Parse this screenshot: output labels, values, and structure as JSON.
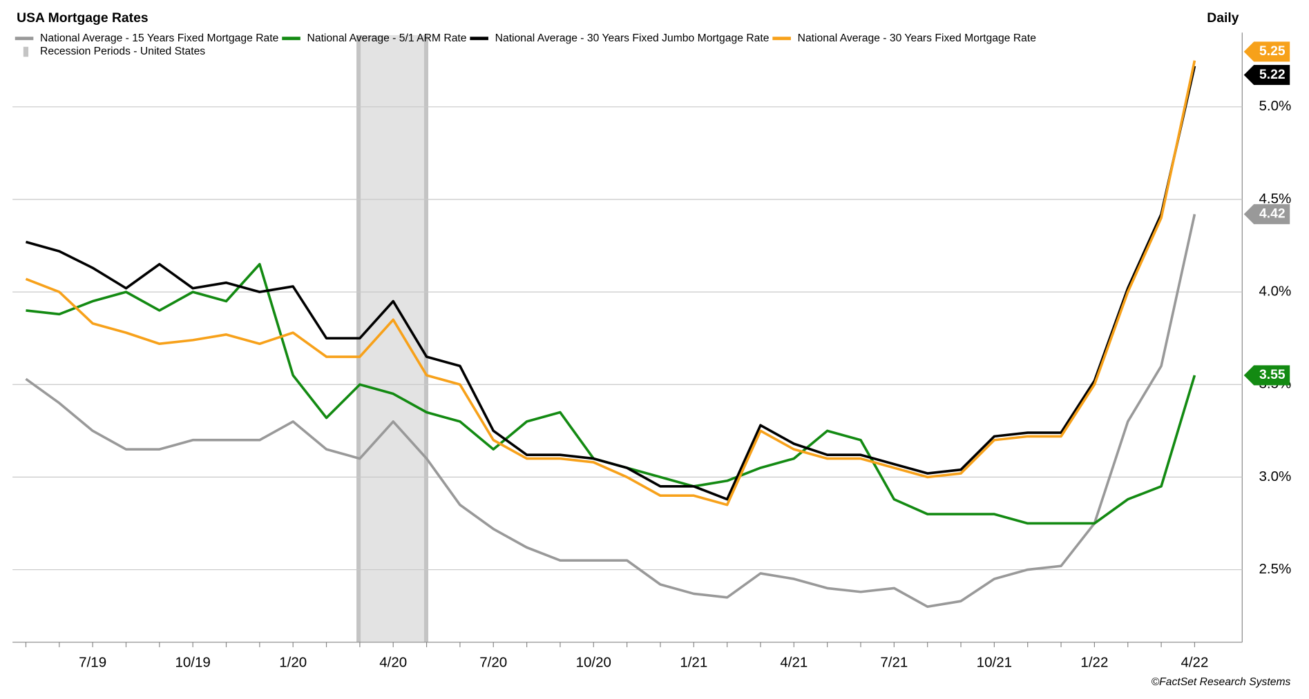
{
  "chart_data": {
    "type": "line",
    "title": "USA Mortgage Rates",
    "frequency": "Daily",
    "source": "©FactSet Research Systems",
    "recession_label": "Recession Periods - United States",
    "categories": [
      null,
      null,
      "7/19",
      null,
      null,
      "10/19",
      null,
      null,
      "1/20",
      null,
      null,
      "4/20",
      null,
      null,
      "7/20",
      null,
      null,
      "10/20",
      null,
      null,
      "1/21",
      null,
      null,
      "4/21",
      null,
      null,
      "7/21",
      null,
      null,
      "10/21",
      null,
      null,
      "1/22",
      null,
      null,
      "4/22"
    ],
    "series": [
      {
        "name": "National Average - 15 Years Fixed Mortgage Rate",
        "color": "#999999",
        "values": [
          3.53,
          3.4,
          3.25,
          3.15,
          3.15,
          3.2,
          3.2,
          3.2,
          3.3,
          3.15,
          3.1,
          3.3,
          3.1,
          2.85,
          2.72,
          2.62,
          2.55,
          2.55,
          2.55,
          2.42,
          2.37,
          2.35,
          2.48,
          2.45,
          2.4,
          2.38,
          2.4,
          2.3,
          2.33,
          2.45,
          2.5,
          2.52,
          2.75,
          3.3,
          3.6,
          4.42
        ]
      },
      {
        "name": "National Average - 5/1 ARM Rate",
        "color": "#138a12",
        "values": [
          3.9,
          3.88,
          3.95,
          4.0,
          3.9,
          4.0,
          3.95,
          4.15,
          3.55,
          3.32,
          3.5,
          3.45,
          3.35,
          3.3,
          3.15,
          3.3,
          3.35,
          3.1,
          3.05,
          3.0,
          2.95,
          2.98,
          3.05,
          3.1,
          3.25,
          3.2,
          2.88,
          2.8,
          2.8,
          2.8,
          2.75,
          2.75,
          2.75,
          2.88,
          2.95,
          3.55
        ]
      },
      {
        "name": "National Average - 30 Years Fixed Jumbo Mortgage Rate",
        "color": "#000000",
        "values": [
          4.27,
          4.22,
          4.13,
          4.02,
          4.15,
          4.02,
          4.05,
          4.0,
          4.03,
          3.75,
          3.75,
          3.95,
          3.65,
          3.6,
          3.25,
          3.12,
          3.12,
          3.1,
          3.05,
          2.95,
          2.95,
          2.88,
          3.28,
          3.18,
          3.12,
          3.12,
          3.07,
          3.02,
          3.04,
          3.22,
          3.24,
          3.24,
          3.52,
          4.02,
          4.42,
          5.22
        ]
      },
      {
        "name": "National Average - 30 Years Fixed Mortgage Rate",
        "color": "#f7a11a",
        "values": [
          4.07,
          4.0,
          3.83,
          3.78,
          3.72,
          3.74,
          3.77,
          3.72,
          3.78,
          3.65,
          3.65,
          3.85,
          3.55,
          3.5,
          3.2,
          3.1,
          3.1,
          3.08,
          3.0,
          2.9,
          2.9,
          2.85,
          3.25,
          3.15,
          3.1,
          3.1,
          3.05,
          3.0,
          3.02,
          3.2,
          3.22,
          3.22,
          3.5,
          4.0,
          4.4,
          5.25
        ]
      }
    ],
    "ylim": [
      2.1,
      5.4
    ],
    "yticks": [
      {
        "value": 2.5,
        "label": "2.5%"
      },
      {
        "value": 3,
        "label": "3.0%"
      },
      {
        "value": 3.5,
        "label": "3.5%"
      },
      {
        "value": 4,
        "label": "4.0%"
      },
      {
        "value": 4.5,
        "label": "4.5%"
      },
      {
        "value": 5,
        "label": "5.0%"
      }
    ],
    "grid": true
  }
}
